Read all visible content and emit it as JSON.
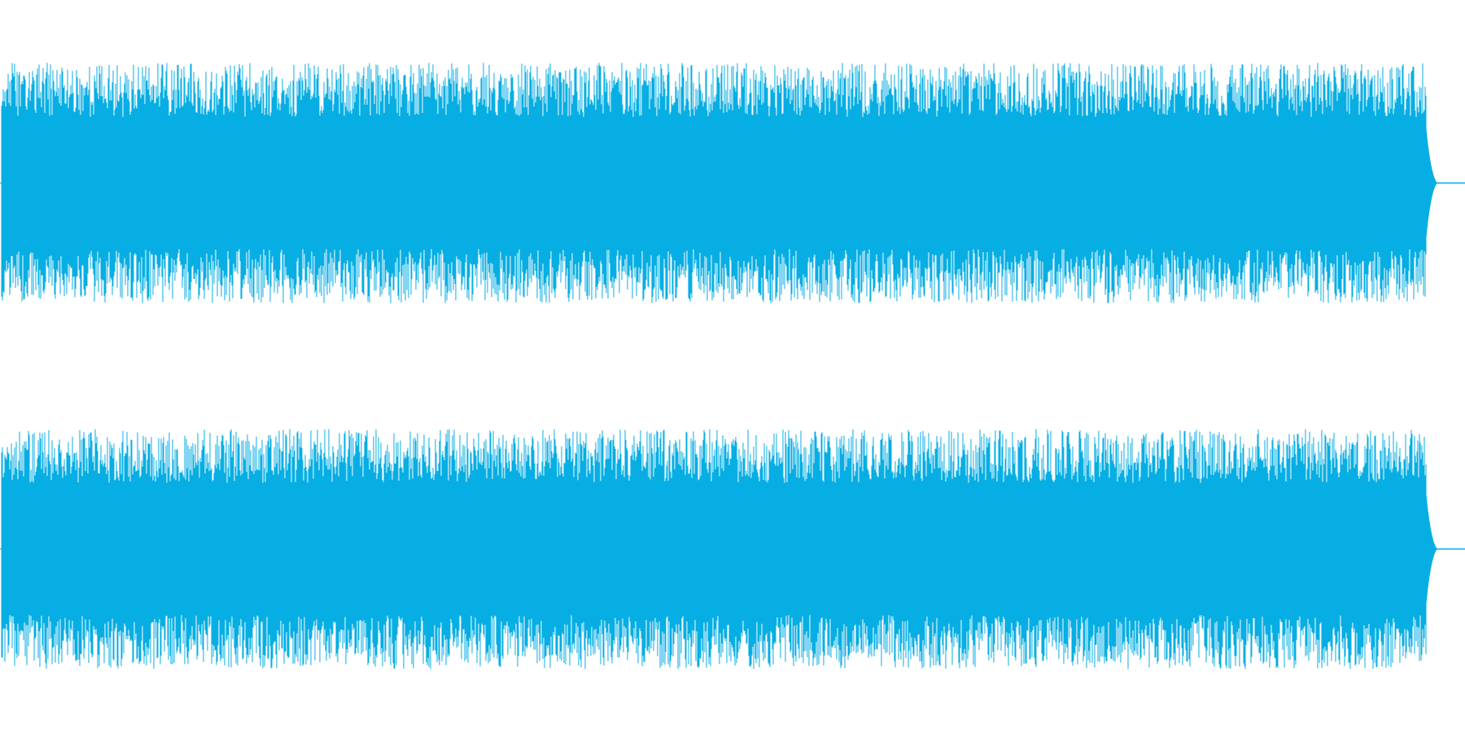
{
  "waveform": {
    "color": "#07aee3",
    "channels": [
      {
        "id": "left",
        "peak_level": 0.82,
        "body_level": 0.4,
        "seed": 11
      },
      {
        "id": "right",
        "peak_level": 0.82,
        "body_level": 0.4,
        "seed": 29
      }
    ],
    "end_of_signal_fraction": 0.978
  }
}
